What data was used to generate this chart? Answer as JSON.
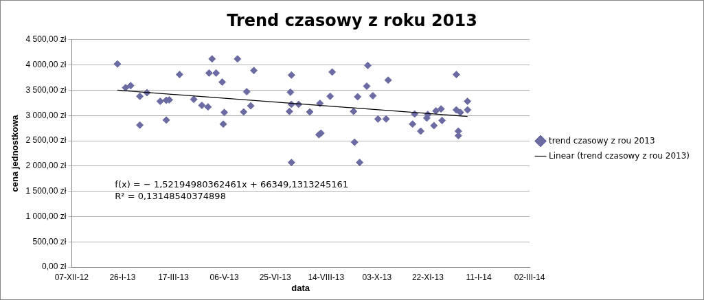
{
  "chart_data": {
    "type": "scatter",
    "title": "Trend czasowy z roku 2013",
    "xlabel": "data",
    "ylabel": "cena jednostkowa",
    "annotations": [
      "f(x) = − 1,52194980362461x + 66349,1313245161",
      "R² = 0,13148540374898"
    ],
    "xlim": [
      "2012-12-07",
      "2014-03-02"
    ],
    "xticks": [
      {
        "value": "2012-12-07",
        "label": "07-XII-12"
      },
      {
        "value": "2013-01-26",
        "label": "26-I-13"
      },
      {
        "value": "2013-03-17",
        "label": "17-III-13"
      },
      {
        "value": "2013-05-06",
        "label": "06-V-13"
      },
      {
        "value": "2013-06-25",
        "label": "25-VI-13"
      },
      {
        "value": "2013-08-14",
        "label": "14-VIII-13"
      },
      {
        "value": "2013-10-03",
        "label": "03-X-13"
      },
      {
        "value": "2013-11-22",
        "label": "22-XI-13"
      },
      {
        "value": "2014-01-11",
        "label": "11-I-14"
      },
      {
        "value": "2014-03-02",
        "label": "02-III-14"
      }
    ],
    "ylim": [
      0,
      4500
    ],
    "yticks": [
      {
        "value": 0,
        "label": "0,00 zł"
      },
      {
        "value": 500,
        "label": "500,00 zł"
      },
      {
        "value": 1000,
        "label": "1 000,00 zł"
      },
      {
        "value": 1500,
        "label": "1 500,00 zł"
      },
      {
        "value": 2000,
        "label": "2 000,00 zł"
      },
      {
        "value": 2500,
        "label": "2 500,00 zł"
      },
      {
        "value": 3000,
        "label": "3 000,00 zł"
      },
      {
        "value": 3500,
        "label": "3 500,00 zł"
      },
      {
        "value": 4000,
        "label": "4 000,00 zł"
      },
      {
        "value": 4500,
        "label": "4 500,00 zł"
      }
    ],
    "grid": "y",
    "legend": "right",
    "marker": "diamond",
    "series": [
      {
        "name": "trend czasowy z rou 2013",
        "color": "#6b6ba3",
        "x": [
          "2013-01-21",
          "2013-01-29",
          "2013-02-03",
          "2013-02-12",
          "2013-02-12",
          "2013-02-19",
          "2013-03-04",
          "2013-03-10",
          "2013-03-10",
          "2013-03-13",
          "2013-03-23",
          "2013-04-06",
          "2013-04-14",
          "2013-04-20",
          "2013-04-21",
          "2013-04-24",
          "2013-04-28",
          "2013-05-04",
          "2013-05-05",
          "2013-05-06",
          "2013-05-19",
          "2013-05-25",
          "2013-05-28",
          "2013-06-01",
          "2013-06-04",
          "2013-07-09",
          "2013-07-10",
          "2013-07-11",
          "2013-07-11",
          "2013-07-11",
          "2013-07-18",
          "2013-07-29",
          "2013-08-07",
          "2013-08-08",
          "2013-08-09",
          "2013-08-18",
          "2013-08-20",
          "2013-09-10",
          "2013-09-11",
          "2013-09-14",
          "2013-09-16",
          "2013-09-23",
          "2013-09-24",
          "2013-09-29",
          "2013-10-04",
          "2013-10-12",
          "2013-10-14",
          "2013-11-07",
          "2013-11-09",
          "2013-11-15",
          "2013-11-21",
          "2013-11-22",
          "2013-11-28",
          "2013-11-30",
          "2013-12-05",
          "2013-12-06",
          "2013-12-20",
          "2013-12-20",
          "2013-12-22",
          "2013-12-22",
          "2013-12-24",
          "2013-12-31",
          "2013-12-31"
        ],
        "values": [
          4020,
          3550,
          3590,
          3380,
          2810,
          3450,
          3280,
          3300,
          2910,
          3310,
          3810,
          3320,
          3200,
          3170,
          3840,
          4120,
          3840,
          3660,
          2830,
          3060,
          4120,
          3070,
          3470,
          3190,
          3890,
          3080,
          3460,
          3800,
          3220,
          2070,
          3220,
          3070,
          2620,
          3240,
          2650,
          3380,
          3860,
          3080,
          2470,
          3370,
          2070,
          3580,
          3990,
          3390,
          2930,
          2930,
          3700,
          2830,
          3030,
          2690,
          2950,
          3020,
          2800,
          3090,
          3130,
          2900,
          3810,
          3110,
          2600,
          2690,
          3060,
          3280,
          3110
        ]
      },
      {
        "name": "Linear (trend czasowy z rou 2013)",
        "color": "#000000",
        "type": "line",
        "marker": "none",
        "line_style": "solid",
        "x": [
          "2013-01-21",
          "2013-12-31"
        ],
        "values": [
          3500,
          2980
        ]
      }
    ]
  }
}
